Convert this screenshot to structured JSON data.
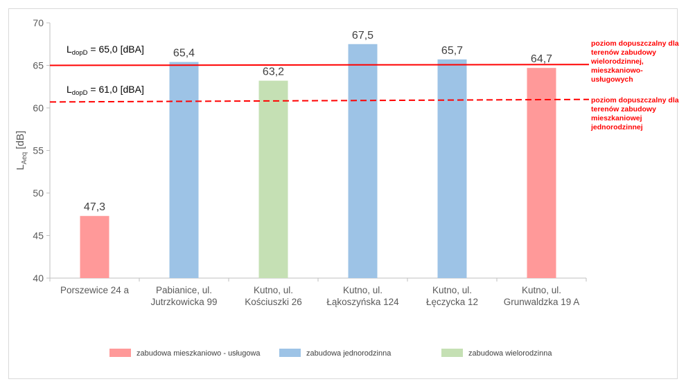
{
  "chart_data": {
    "type": "bar",
    "title": "",
    "ylabel": {
      "main": "L",
      "sub": "Aeq",
      "unit": " [dB]"
    },
    "ylim": [
      40,
      70
    ],
    "yticks": [
      40,
      45,
      50,
      55,
      60,
      65,
      70
    ],
    "categories": [
      [
        "Porszewice 24 a"
      ],
      [
        "Pabianice, ul.",
        "Jutrzkowicka 99"
      ],
      [
        "Kutno, ul.",
        "Kościuszki 26"
      ],
      [
        "Kutno, ul.",
        "Łąkoszyńska 124"
      ],
      [
        "Kutno, ul.",
        "Łęczycka 12"
      ],
      [
        "Kutno, ul.",
        "Grunwaldzka 19 A"
      ]
    ],
    "values": [
      47.3,
      65.4,
      63.2,
      67.5,
      65.7,
      64.7
    ],
    "value_labels": [
      "47,3",
      "65,4",
      "63,2",
      "67,5",
      "65,7",
      "64,7"
    ],
    "bar_group": [
      0,
      1,
      2,
      1,
      1,
      0
    ],
    "groups": [
      {
        "name": "zabudowa mieszkaniowo - usługowa",
        "color": "#ff9999"
      },
      {
        "name": "zabudowa jednorodzinna",
        "color": "#9dc3e6"
      },
      {
        "name": "zabudowa wielorodzinna",
        "color": "#c5e0b4"
      }
    ],
    "reference_lines": [
      {
        "value_start": 65.0,
        "value_end": 65.1,
        "style": "solid",
        "color": "#ff0000",
        "label_main": "L",
        "label_sub": "dopD",
        "label_rest": " = 65,0 [dBA]",
        "note": [
          "poziom dopuszczalny dla",
          "terenów zabudowy",
          "wielorodzinnej,",
          "mieszkaniowo-",
          "usługowych"
        ]
      },
      {
        "value_start": 60.7,
        "value_end": 61.0,
        "style": "dashed",
        "color": "#ff0000",
        "label_main": "L",
        "label_sub": "dopD",
        "label_rest": " = 61,0 [dBA]",
        "note": [
          "poziom dopuszczalny dla",
          "terenów zabudowy",
          "mieszkaniowej",
          "jednorodzinnej"
        ]
      }
    ],
    "grid": false,
    "legend_position": "bottom"
  }
}
